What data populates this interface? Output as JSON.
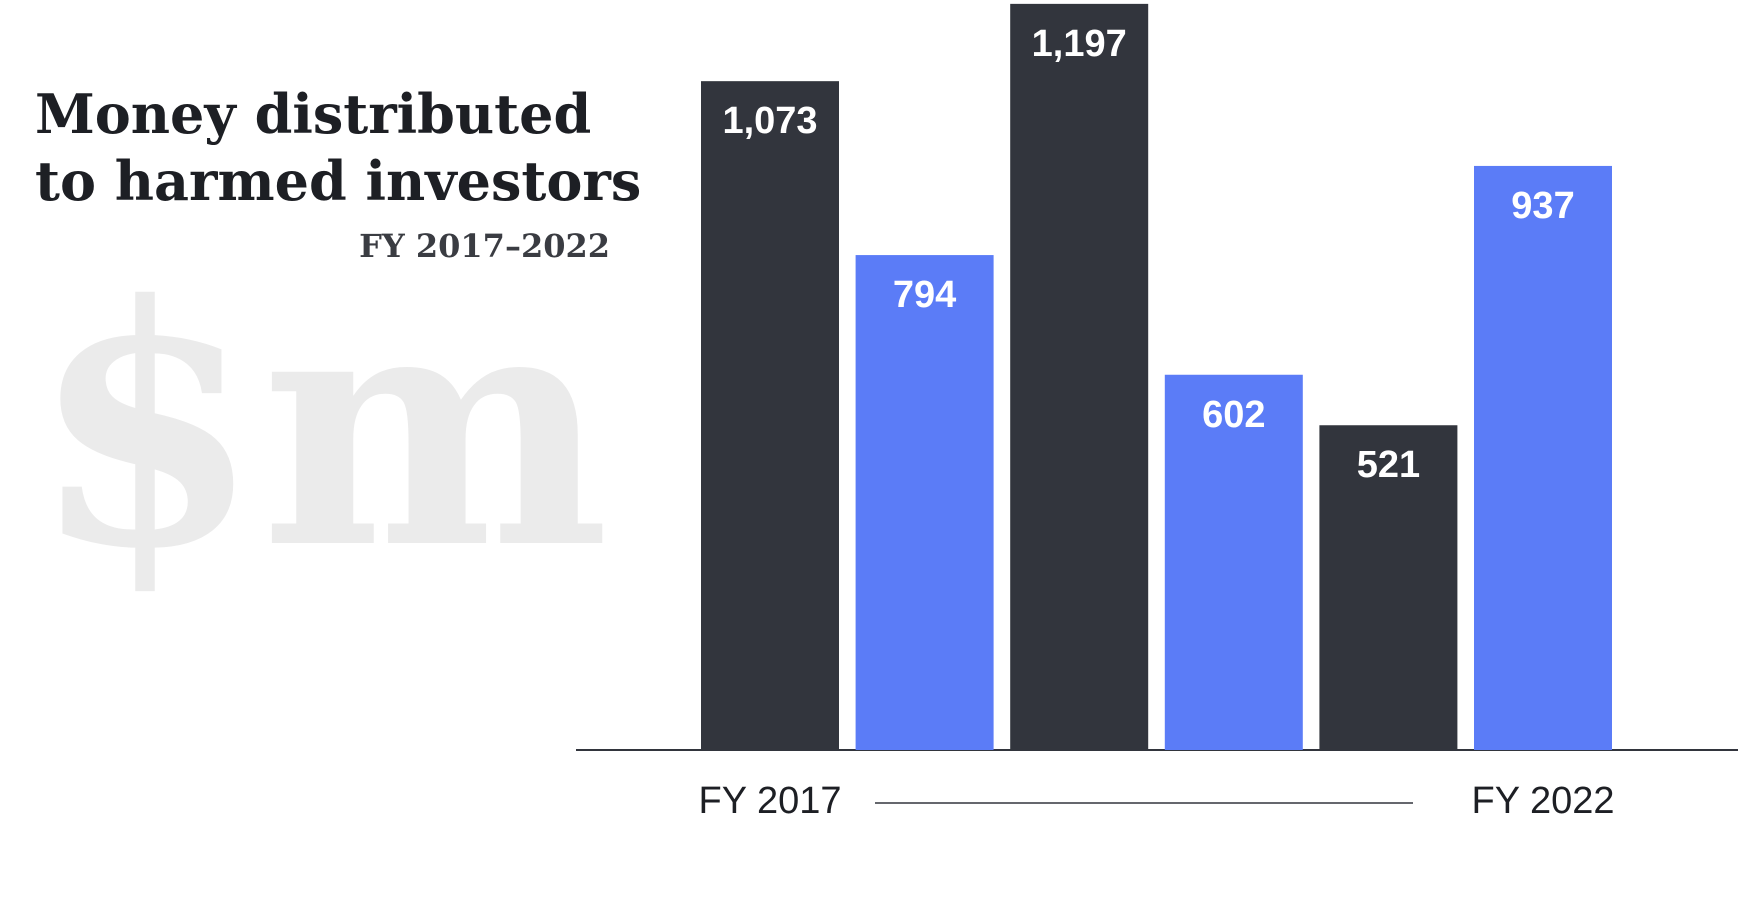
{
  "chart_data": {
    "type": "bar",
    "title": [
      "Money distributed",
      "to harmed investors"
    ],
    "subtitle": "FY 2017–2022",
    "watermark": "$m",
    "categories": [
      "FY 2017",
      null,
      null,
      null,
      null,
      "FY 2022"
    ],
    "values": [
      1073,
      794,
      1197,
      602,
      521,
      937
    ],
    "value_labels": [
      "1,073",
      "794",
      "1,197",
      "602",
      "521",
      "937"
    ],
    "colors": [
      "#32353d",
      "#5b7cf7",
      "#32353d",
      "#5b7cf7",
      "#32353d",
      "#5b7cf7"
    ],
    "ylim": [
      0,
      1200
    ]
  }
}
